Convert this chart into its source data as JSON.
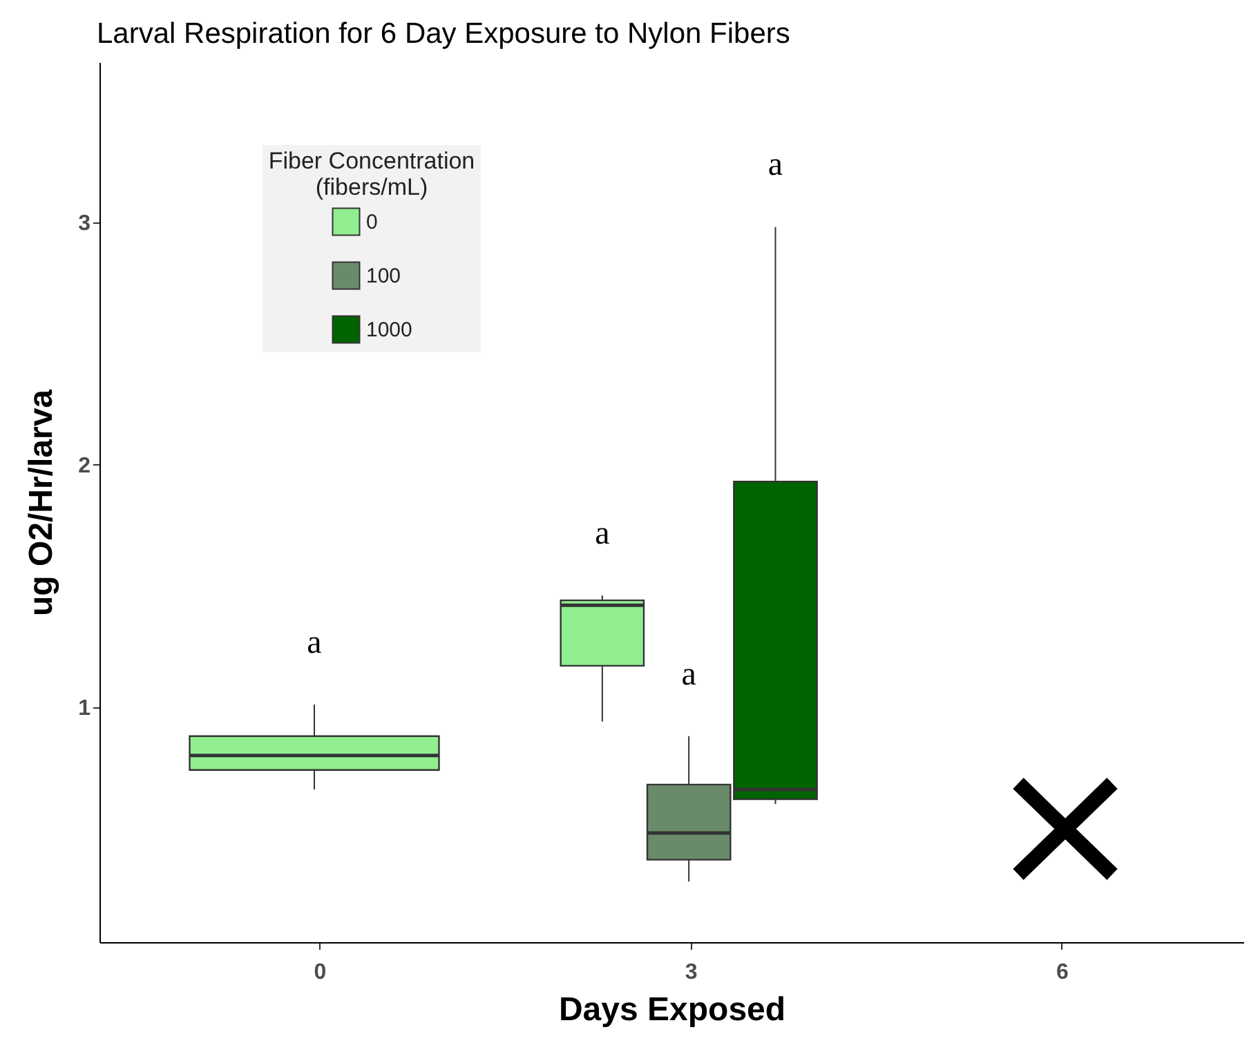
{
  "chart_data": {
    "type": "box",
    "title": "Larval Respiration for 6 Day Exposure to Nylon Fibers",
    "xlabel": "Days Exposed",
    "ylabel": "ug O2/Hr/larva",
    "legend_title": "Fiber Concentration\n(fibers/mL)",
    "legend": "top left",
    "grid": false,
    "categories": [
      "0",
      "3",
      "6"
    ],
    "ylim": [
      0.03,
      3.66
    ],
    "yticks": [
      1,
      2,
      3
    ],
    "series": [
      {
        "name": "0",
        "color": "#90ee90",
        "boxes": [
          {
            "low": 0.66,
            "q1": 0.74,
            "median": 0.8,
            "q3": 0.88,
            "high": 1.01
          },
          {
            "low": 0.94,
            "q1": 1.17,
            "median": 1.42,
            "q3": 1.44,
            "high": 1.46
          },
          null
        ]
      },
      {
        "name": "100",
        "color": "#698b69",
        "boxes": [
          null,
          {
            "low": 0.28,
            "q1": 0.37,
            "median": 0.48,
            "q3": 0.68,
            "high": 0.88
          },
          null
        ]
      },
      {
        "name": "1000",
        "color": "#006400",
        "boxes": [
          null,
          {
            "low": 0.6,
            "q1": 0.62,
            "median": 0.66,
            "q3": 1.93,
            "high": 2.98
          },
          null
        ]
      }
    ],
    "annotations": [
      "a",
      "a",
      "a",
      "a"
    ]
  }
}
